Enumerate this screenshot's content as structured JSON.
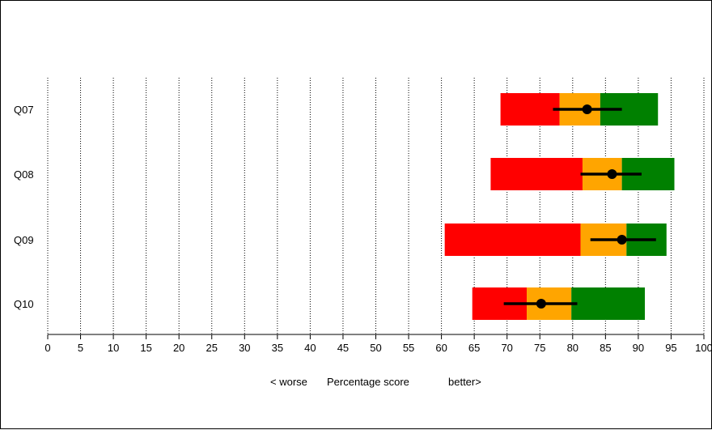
{
  "chart_data": {
    "type": "bar",
    "orientation": "horizontal",
    "categories": [
      "Q07",
      "Q08",
      "Q09",
      "Q10"
    ],
    "bands": [
      {
        "category": "Q07",
        "red": [
          69,
          78
        ],
        "orange": [
          78,
          84.2
        ],
        "green": [
          84.2,
          93
        ]
      },
      {
        "category": "Q08",
        "red": [
          67.5,
          81.5
        ],
        "orange": [
          81.5,
          87.5
        ],
        "green": [
          87.5,
          95.5
        ]
      },
      {
        "category": "Q09",
        "red": [
          60.5,
          81.2
        ],
        "orange": [
          81.2,
          88.2
        ],
        "green": [
          88.2,
          94.3
        ]
      },
      {
        "category": "Q10",
        "red": [
          64.7,
          73
        ],
        "orange": [
          73,
          79.8
        ],
        "green": [
          79.8,
          91
        ]
      }
    ],
    "points": [
      {
        "category": "Q07",
        "value": 82.2,
        "ci": [
          77,
          87.5
        ]
      },
      {
        "category": "Q08",
        "value": 86,
        "ci": [
          81.2,
          90.5
        ]
      },
      {
        "category": "Q09",
        "value": 87.5,
        "ci": [
          82.7,
          92.7
        ]
      },
      {
        "category": "Q10",
        "value": 75.2,
        "ci": [
          69.5,
          80.7
        ]
      }
    ],
    "xlim": [
      0,
      100
    ],
    "x_ticks": [
      0,
      5,
      10,
      15,
      20,
      25,
      30,
      35,
      40,
      45,
      50,
      55,
      60,
      65,
      70,
      75,
      80,
      85,
      90,
      95,
      100
    ],
    "grid": "vertical dotted",
    "xlabel_left": "< worse",
    "xlabel": "Percentage score",
    "xlabel_right": "better>",
    "colors": {
      "red": "#ff0000",
      "orange": "#ffa500",
      "green": "#008000",
      "marker": "#000000"
    }
  }
}
